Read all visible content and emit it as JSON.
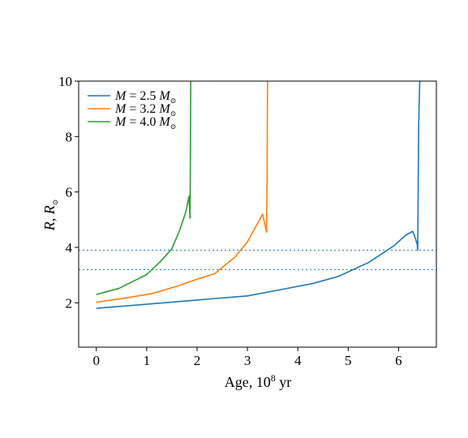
{
  "chart_data": {
    "type": "line",
    "title": "",
    "xlabel": "Age, 10",
    "xlabel_sup": "8",
    "xlabel_tail": " yr",
    "ylabel_r": "R",
    "ylabel_sep": ", ",
    "ylabel_unit": "R",
    "ylabel_sub": "⊙",
    "xlim": [
      -0.35,
      6.75
    ],
    "ylim": [
      0.4,
      10
    ],
    "xticks": [
      0,
      1,
      2,
      3,
      4,
      5,
      6
    ],
    "xtick_labels": [
      "0",
      "1",
      "2",
      "3",
      "4",
      "5",
      "6"
    ],
    "yticks": [
      2,
      4,
      6,
      8,
      10
    ],
    "ytick_labels": [
      "2",
      "4",
      "6",
      "8",
      "10"
    ],
    "grid": false,
    "legend_position": "top-left",
    "series": [
      {
        "name": "M = 2.5 M⊙",
        "mass": "2.5",
        "color": "#1f77b4",
        "x": [
          0.0,
          1.0,
          2.0,
          3.0,
          3.5,
          4.3,
          4.8,
          5.4,
          5.9,
          6.15,
          6.28,
          6.33,
          6.37,
          6.38,
          6.39,
          6.4,
          6.42
        ],
        "y": [
          1.8,
          1.95,
          2.1,
          2.25,
          2.42,
          2.7,
          2.95,
          3.45,
          4.05,
          4.45,
          4.58,
          4.35,
          4.1,
          3.9,
          6.5,
          8.5,
          10.0
        ]
      },
      {
        "name": "M = 3.2 M⊙",
        "mass": "3.2",
        "color": "#ff7f0e",
        "x": [
          0.0,
          0.5,
          1.1,
          1.6,
          2.0,
          2.35,
          2.75,
          3.0,
          3.15,
          3.3,
          3.38,
          3.39,
          3.395,
          3.4
        ],
        "y": [
          2.02,
          2.15,
          2.33,
          2.6,
          2.85,
          3.05,
          3.65,
          4.2,
          4.7,
          5.2,
          4.55,
          6.5,
          8.5,
          10.0
        ]
      },
      {
        "name": "M = 4.0 M⊙",
        "mass": "4.0",
        "color": "#2ca02c",
        "x": [
          0.0,
          0.45,
          1.0,
          1.25,
          1.5,
          1.65,
          1.78,
          1.84,
          1.86,
          1.865,
          1.87,
          1.875
        ],
        "y": [
          2.3,
          2.52,
          3.02,
          3.45,
          3.95,
          4.6,
          5.3,
          5.85,
          5.05,
          6.5,
          8.5,
          10.0
        ]
      }
    ],
    "hlines": [
      {
        "y": 3.9,
        "color": "#1f77b4",
        "style": "dotted"
      },
      {
        "y": 3.2,
        "color": "#1f77b4",
        "style": "dotted"
      }
    ]
  }
}
